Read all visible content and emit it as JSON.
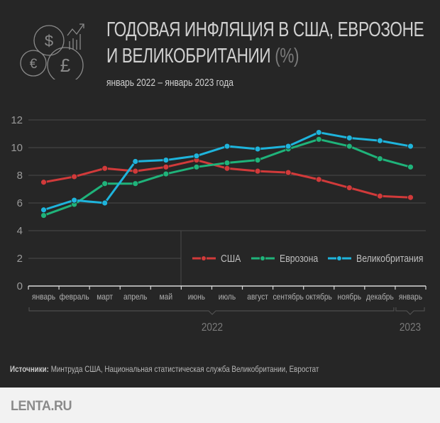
{
  "header": {
    "title_line1": "ГОДОВАЯ ИНФЛЯЦИЯ В США, ЕВРОЗОНЕ",
    "title_line2": "И ВЕЛИКОБРИТАНИИ",
    "title_unit": "(%)",
    "subtitle": "январь 2022 – январь 2023 года",
    "icon": "currency-coins-growth-icon"
  },
  "chart_data": {
    "type": "line",
    "title": "Годовая инфляция в США, еврозоне и Великобритании (%)",
    "subtitle": "январь 2022 – январь 2023 года",
    "xlabel": "",
    "ylabel": "",
    "ylim": [
      0,
      12
    ],
    "yticks": [
      0,
      2,
      4,
      6,
      8,
      10,
      12
    ],
    "grid": true,
    "legend_position": "center-right",
    "categories": [
      "январь",
      "февраль",
      "март",
      "апрель",
      "май",
      "июнь",
      "июль",
      "август",
      "сентябрь",
      "октябрь",
      "ноябрь",
      "декабрь",
      "январь"
    ],
    "year_groups": [
      {
        "label": "2022",
        "from": 0,
        "to": 11
      },
      {
        "label": "2023",
        "from": 12,
        "to": 12
      }
    ],
    "series": [
      {
        "name": "США",
        "color": "#d13a3a",
        "values": [
          7.5,
          7.9,
          8.5,
          8.3,
          8.6,
          9.1,
          8.5,
          8.3,
          8.2,
          7.7,
          7.1,
          6.5,
          6.4
        ]
      },
      {
        "name": "Еврозона",
        "color": "#1fb37a",
        "values": [
          5.1,
          5.9,
          7.4,
          7.4,
          8.1,
          8.6,
          8.9,
          9.1,
          9.9,
          10.6,
          10.1,
          9.2,
          8.6
        ]
      },
      {
        "name": "Великобритания",
        "color": "#1eb4dc",
        "values": [
          5.5,
          6.2,
          6.0,
          9.0,
          9.1,
          9.4,
          10.1,
          9.9,
          10.1,
          11.1,
          10.7,
          10.5,
          10.1
        ]
      }
    ]
  },
  "footer": {
    "source_label": "Источники:",
    "source_text": "Минтруда США, Национальная статистическая служба Великобритании, Евростат",
    "logo": "LENTA.RU"
  },
  "colors": {
    "background": "#262626",
    "footer_background": "#f2f2f2",
    "grid": "#4a4a4a"
  }
}
